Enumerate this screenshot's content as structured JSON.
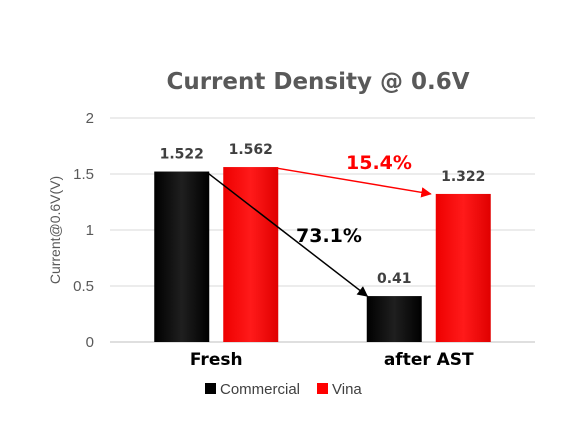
{
  "chart_data": {
    "type": "bar",
    "title": "Current Density @ 0.6V",
    "xlabel": "",
    "ylabel": "Current@0.6V(V)",
    "categories": [
      "Fresh",
      "after AST"
    ],
    "ylim": [
      0,
      2
    ],
    "yticks": [
      "0",
      "0.5",
      "1",
      "1.5",
      "2"
    ],
    "grid": true,
    "legend_position": "bottom",
    "series": [
      {
        "name": "Commercial",
        "values": [
          1.522,
          0.41
        ],
        "labels": [
          "1.522",
          "0.41"
        ],
        "color": "#000000"
      },
      {
        "name": "Vina",
        "values": [
          1.562,
          1.322
        ],
        "labels": [
          "1.562",
          "1.322"
        ],
        "color": "#ff0000"
      }
    ],
    "annotations": [
      {
        "text": "73.1%",
        "color": "#000000",
        "from": {
          "series": 0,
          "category": 0
        },
        "to": {
          "series": 0,
          "category": 1
        }
      },
      {
        "text": "15.4%",
        "color": "#ff0000",
        "from": {
          "series": 1,
          "category": 0
        },
        "to": {
          "series": 1,
          "category": 1
        }
      }
    ]
  }
}
